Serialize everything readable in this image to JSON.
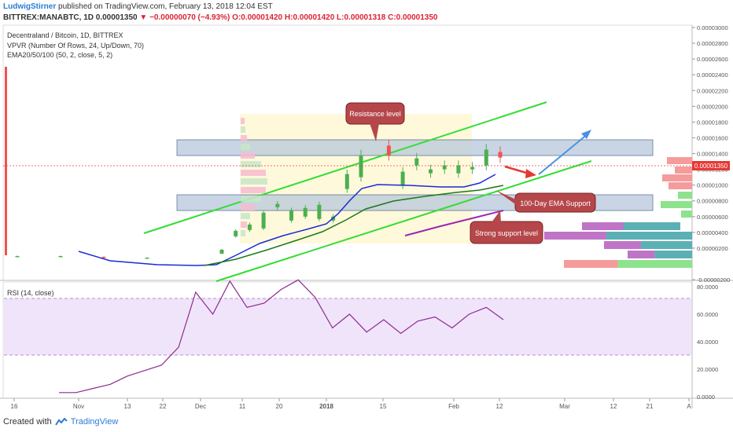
{
  "header": {
    "author": "LudwigStirner",
    "published": "published on TradingView.com, February 13, 2018 12:04 EST",
    "symbol": "BITTREX:MANABTC, 1D",
    "last": "0.00001350",
    "change": "▼ −0.00000070 (−4.93%)",
    "ohlc": "O:0.00001420 H:0.00001420 L:0.00001318 C:0.00001350"
  },
  "legend": {
    "title": "Decentraland / Bitcoin, 1D, BITTREX",
    "vpvr": "VPVR (Number Of Rows, 24, Up/Down, 70)",
    "ema": "EMA20/50/100 (50, 2, close, 5, 2)",
    "rsi": "RSI (14, close)"
  },
  "annotations": {
    "resistance": "Resistance level",
    "ema_support": "100-Day EMA Support",
    "strong_support": "Strong support level"
  },
  "price_labels": [
    "0.00003000",
    "0.00002800",
    "0.00002600",
    "0.00002400",
    "0.00002200",
    "0.00002000",
    "0.00001800",
    "0.00001600",
    "0.00001400",
    "0.00001200",
    "0.00001000",
    "0.00000800",
    "0.00000600",
    "0.00000400",
    "0.00000200",
    "-0.00000200"
  ],
  "current_price_label": "0.00001350",
  "rsi_labels": [
    "80.0000",
    "60.0000",
    "40.0000",
    "20.0000",
    "0.0000"
  ],
  "time_labels": [
    "16",
    "Nov",
    "13",
    "22",
    "Dec",
    "11",
    "20",
    "2018",
    "15",
    "Feb",
    "12",
    "Mar",
    "12",
    "21",
    "A"
  ],
  "footer": {
    "created": "Created with",
    "brand": "TradingView"
  },
  "colors": {
    "up": "#4caf50",
    "down": "#ef5350",
    "ema_blue": "#1a2bd6",
    "ema_green": "#1a7a1a",
    "ema_purple": "#9c27b0",
    "channel": "#33dd33",
    "rsi": "#8e2a8e",
    "arrow_red": "#e53935",
    "arrow_blue": "#4a90e2",
    "annotation": "#a83236"
  },
  "chart_data": {
    "type": "candlestick",
    "price_ylim": [
      -2e-06,
      3.1e-05
    ],
    "rsi_ylim": [
      0,
      90
    ],
    "rsi_band": [
      30,
      70
    ],
    "candles": [
      [
        1e-06,
        1e-06
      ],
      [
        9e-07,
        1e-06
      ],
      [
        9e-07,
        8e-07
      ],
      [
        8e-07,
        8e-07
      ],
      [
        1.3e-06,
        1.8e-06
      ],
      [
        3.5e-06,
        4.2e-06
      ],
      [
        4.3e-06,
        5e-06
      ],
      [
        4.5e-06,
        6.5e-06
      ],
      [
        7.2e-06,
        7.6e-06
      ],
      [
        5.5e-06,
        6.8e-06
      ],
      [
        6e-06,
        7.1e-06
      ],
      [
        5.7e-06,
        7.5e-06
      ],
      [
        5.5e-06,
        6e-06
      ],
      [
        9.5e-06,
        1.14e-05
      ],
      [
        1.1e-05,
        1.38e-05
      ],
      [
        1.8e-05,
        1.8e-05
      ],
      [
        1.5e-05,
        1.38e-05
      ],
      [
        1e-05,
        1.17e-05
      ],
      [
        1.25e-05,
        1.34e-05
      ],
      [
        1.15e-05,
        1.2e-05
      ],
      [
        1.2e-05,
        1.25e-05
      ],
      [
        1.15e-05,
        1.25e-05
      ],
      [
        1.2e-05,
        1.23e-05
      ],
      [
        1.25e-05,
        1.45e-05
      ],
      [
        1.42e-05,
        1.35e-05
      ]
    ],
    "ema_blue": [
      1.8e-06,
      1.4e-06,
      1.2e-06,
      1.1e-06,
      1.1e-06,
      1.2e-06,
      3.5e-06,
      5.5e-06,
      6.8e-06,
      7.5e-06,
      1e-05,
      1.05e-05,
      1.12e-05,
      1.16e-05,
      1.2e-05,
      1.28e-05
    ],
    "ema_green": [
      1.2e-06,
      4e-06,
      5.5e-06,
      6.5e-06,
      8.5e-06,
      9.2e-06,
      1e-05,
      1.1e-05
    ],
    "ema_purple": [
      6e-06,
      7.2e-06,
      8e-06
    ],
    "rsi": [
      3,
      3,
      6,
      9,
      15,
      19,
      23,
      36,
      76,
      60,
      84,
      65,
      68,
      78,
      85,
      72,
      50,
      60,
      47,
      56,
      46,
      55,
      58,
      50,
      60,
      65,
      56
    ]
  }
}
